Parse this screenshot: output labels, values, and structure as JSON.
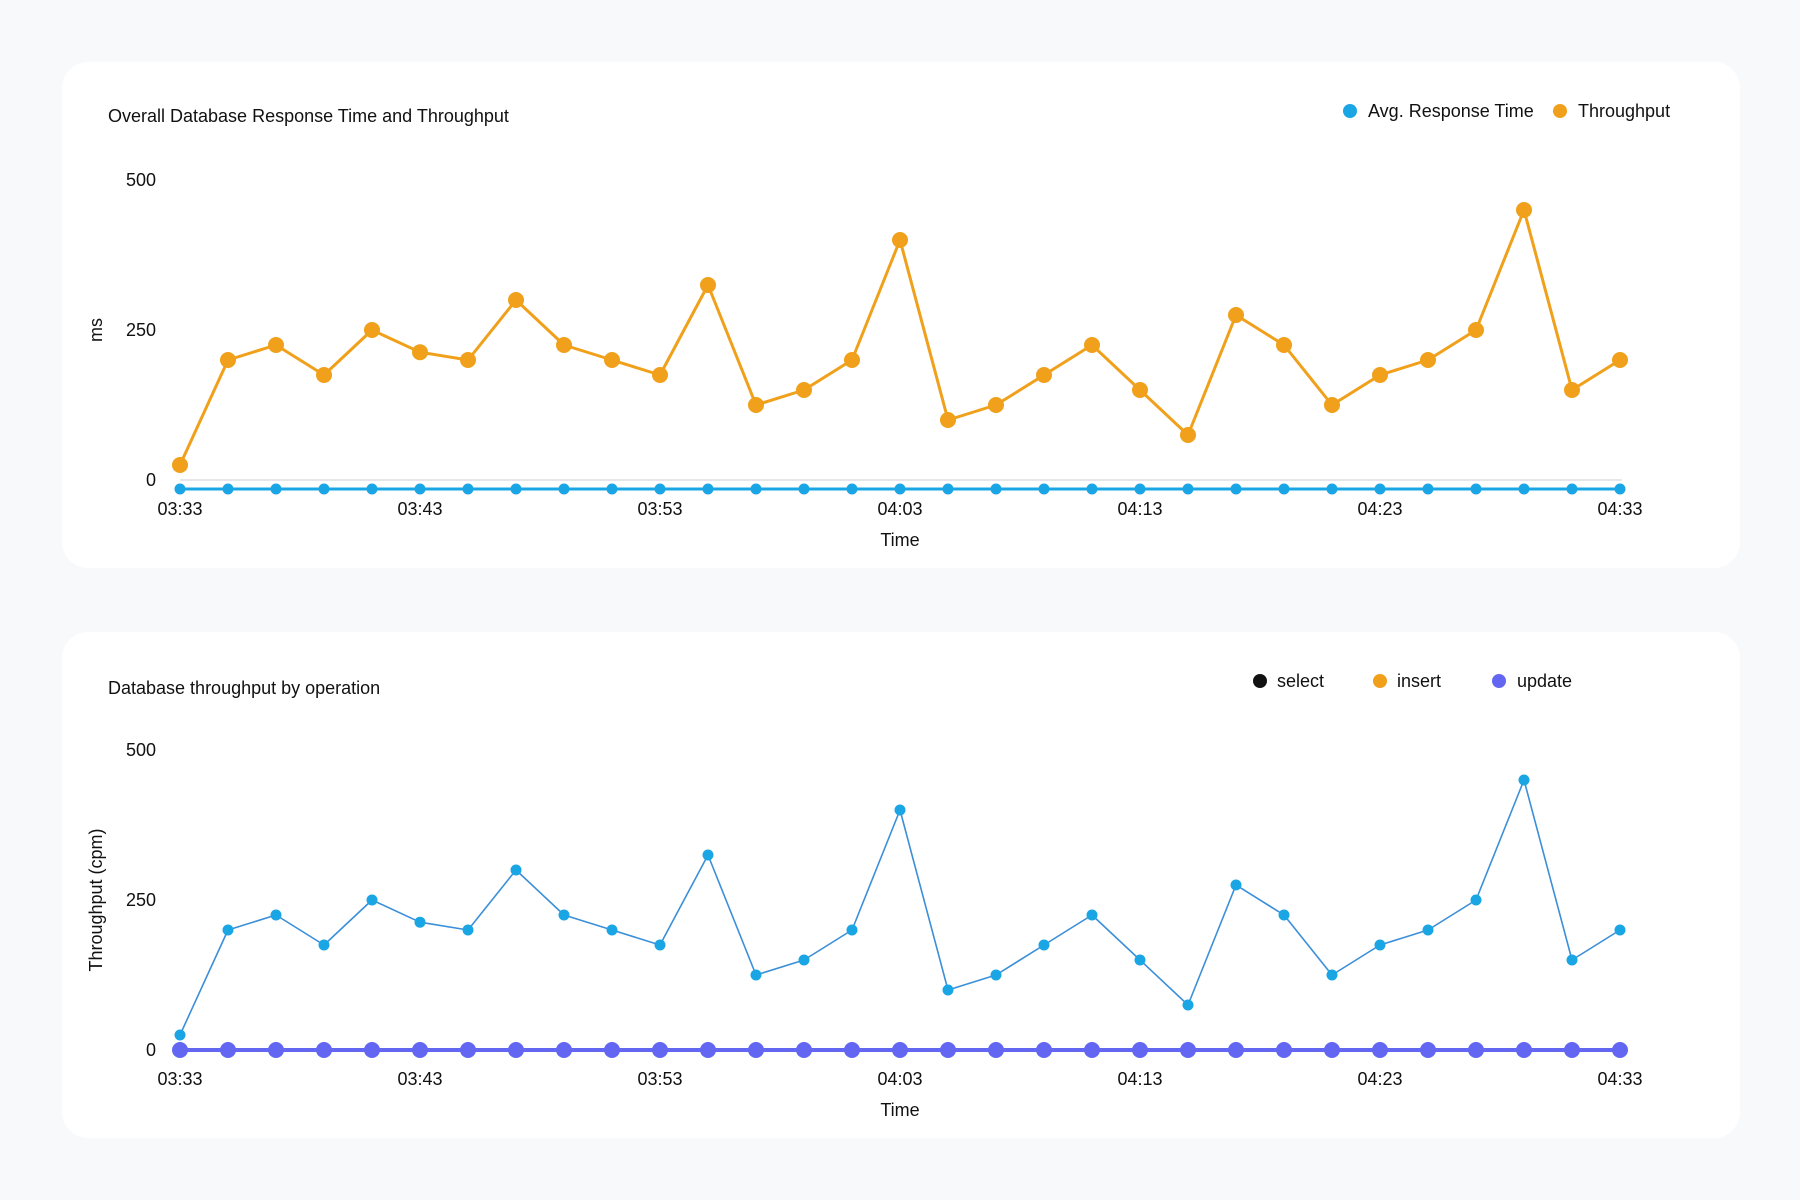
{
  "colors": {
    "avg_response": "#1aa6e4",
    "throughput": "#f0a01a",
    "select": "#111111",
    "insert": "#f0a01a",
    "update": "#6366f1",
    "series_line_blue": "#3b8fd9"
  },
  "chart_data": [
    {
      "type": "line",
      "title": "Overall Database Response Time and Throughput",
      "xlabel": "Time",
      "ylabel": "ms",
      "ylim": [
        0,
        500
      ],
      "yticks": [
        "0",
        "250",
        "500"
      ],
      "xticks": [
        "03:33",
        "03:43",
        "03:53",
        "04:03",
        "04:13",
        "04:23",
        "04:33"
      ],
      "legend_position": "top-right",
      "x": [
        "03:33",
        "03:35",
        "03:37",
        "03:39",
        "03:41",
        "03:43",
        "03:45",
        "03:47",
        "03:49",
        "03:51",
        "03:53",
        "03:55",
        "03:57",
        "03:59",
        "04:01",
        "04:03",
        "04:05",
        "04:07",
        "04:09",
        "04:11",
        "04:13",
        "04:15",
        "04:17",
        "04:19",
        "04:21",
        "04:23",
        "04:25",
        "04:27",
        "04:29",
        "04:31",
        "04:33"
      ],
      "series": [
        {
          "name": "Avg. Response Time",
          "values": [
            -15,
            -15,
            -15,
            -15,
            -15,
            -15,
            -15,
            -15,
            -15,
            -15,
            -15,
            -15,
            -15,
            -15,
            -15,
            -15,
            -15,
            -15,
            -15,
            -15,
            -15,
            -15,
            -15,
            -15,
            -15,
            -15,
            -15,
            -15,
            -15,
            -15,
            -15
          ]
        },
        {
          "name": "Throughput",
          "values": [
            25,
            200,
            225,
            175,
            250,
            213,
            200,
            300,
            225,
            200,
            175,
            325,
            125,
            150,
            200,
            400,
            100,
            125,
            175,
            225,
            150,
            75,
            275,
            225,
            125,
            175,
            200,
            250,
            450,
            150,
            200
          ]
        }
      ]
    },
    {
      "type": "line",
      "title": "Database throughput by operation",
      "xlabel": "Time",
      "ylabel": "Throughput (cpm)",
      "ylim": [
        0,
        500
      ],
      "yticks": [
        "0",
        "250",
        "500"
      ],
      "xticks": [
        "03:33",
        "03:43",
        "03:53",
        "04:03",
        "04:13",
        "04:23",
        "04:33"
      ],
      "legend_position": "top-right",
      "legend": [
        "select",
        "insert",
        "update"
      ],
      "x": [
        "03:33",
        "03:35",
        "03:37",
        "03:39",
        "03:41",
        "03:43",
        "03:45",
        "03:47",
        "03:49",
        "03:51",
        "03:53",
        "03:55",
        "03:57",
        "03:59",
        "04:01",
        "04:03",
        "04:05",
        "04:07",
        "04:09",
        "04:11",
        "04:13",
        "04:15",
        "04:17",
        "04:19",
        "04:21",
        "04:23",
        "04:25",
        "04:27",
        "04:29",
        "04:31",
        "04:33"
      ],
      "series": [
        {
          "name": "select",
          "values": [
            25,
            200,
            225,
            175,
            250,
            213,
            200,
            300,
            225,
            200,
            175,
            325,
            125,
            150,
            200,
            400,
            100,
            125,
            175,
            225,
            150,
            75,
            275,
            225,
            125,
            175,
            200,
            250,
            450,
            150,
            200
          ]
        },
        {
          "name": "insert",
          "values": [
            0,
            0,
            0,
            0,
            0,
            0,
            0,
            0,
            0,
            0,
            0,
            0,
            0,
            0,
            0,
            0,
            0,
            0,
            0,
            0,
            0,
            0,
            0,
            0,
            0,
            0,
            0,
            0,
            0,
            0,
            0
          ]
        },
        {
          "name": "update",
          "values": [
            0,
            0,
            0,
            0,
            0,
            0,
            0,
            0,
            0,
            0,
            0,
            0,
            0,
            0,
            0,
            0,
            0,
            0,
            0,
            0,
            0,
            0,
            0,
            0,
            0,
            0,
            0,
            0,
            0,
            0,
            0
          ]
        }
      ]
    }
  ]
}
